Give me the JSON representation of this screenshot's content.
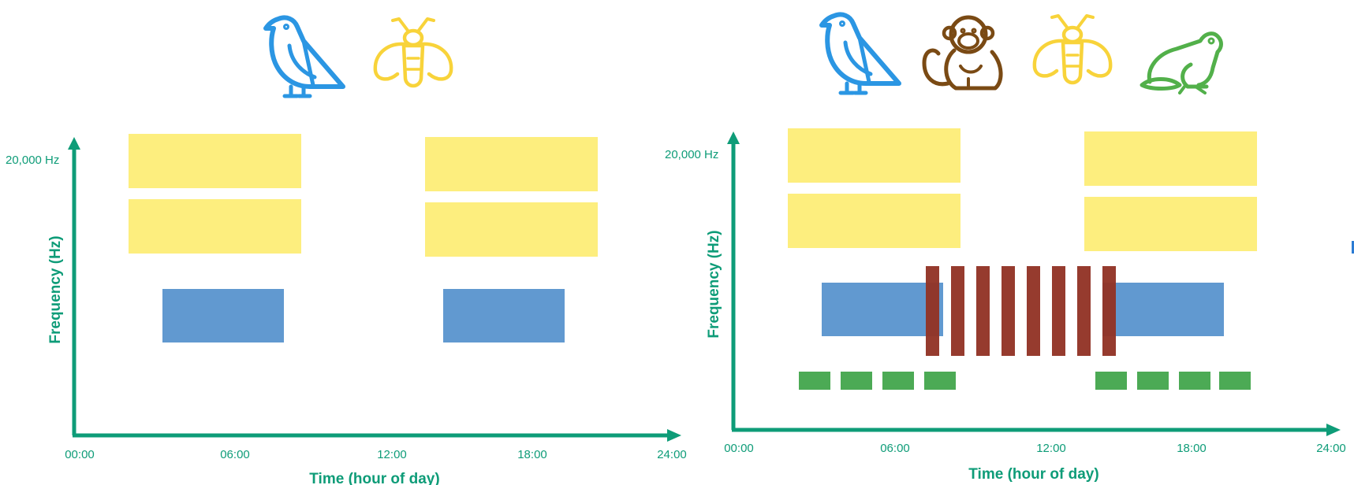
{
  "colors": {
    "axis": "#0e9c78",
    "insect": "#fdee7e",
    "bird": "#6199d0",
    "monkey": "#923325",
    "frog": "#4caa55",
    "bird_icon": "#2b96e3",
    "insect_icon": "#f8d33a",
    "monkey_icon": "#7a4a14",
    "frog_icon": "#52b04a"
  },
  "panels": [
    {
      "icons": [
        "bird-icon",
        "insect-icon"
      ],
      "y_label": "20,000 Hz",
      "y_title": "Frequency (Hz)",
      "x_title": "Time (hour of day)",
      "x_ticks": [
        "00:00",
        "06:00",
        "12:00",
        "18:00",
        "24:00"
      ]
    },
    {
      "icons": [
        "bird-icon",
        "monkey-icon",
        "insect-icon",
        "frog-icon"
      ],
      "y_label": "20,000 Hz",
      "y_title": "Frequency (Hz)",
      "x_title": "Time (hour of day)",
      "x_ticks": [
        "00:00",
        "06:00",
        "12:00",
        "18:00",
        "24:00"
      ]
    }
  ]
}
